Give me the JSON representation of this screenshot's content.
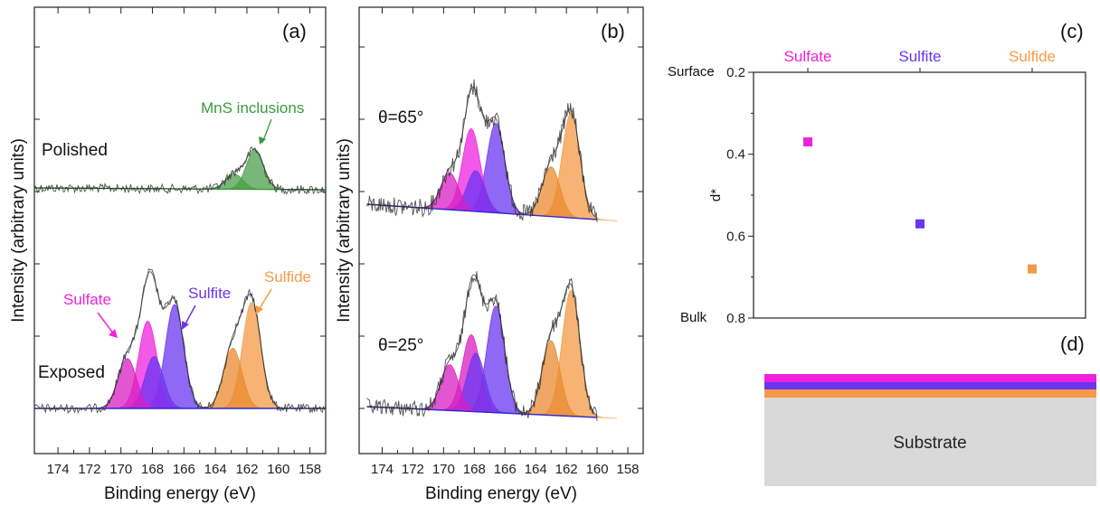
{
  "panels": {
    "a": {
      "letter": "(a)"
    },
    "b": {
      "letter": "(b)"
    },
    "c": {
      "letter": "(c)"
    },
    "d": {
      "letter": "(d)"
    }
  },
  "axes": {
    "xlabel": "Binding energy (eV)",
    "ylabel": "Intensity (arbitrary units)",
    "xticks": [
      "174",
      "172",
      "170",
      "168",
      "166",
      "164",
      "162",
      "160",
      "158"
    ]
  },
  "labels": {
    "polished": "Polished",
    "exposed": "Exposed",
    "mns": "MnS inclusions",
    "sulfate": "Sulfate",
    "sulfite": "Sulfite",
    "sulfide": "Sulfide",
    "theta65": "θ=65°",
    "theta25": "θ=25°"
  },
  "colors": {
    "sulfate": "#ee22dd",
    "sulfate_dark": "#d81fc2",
    "sulfite": "#6a36f0",
    "sulfide": "#f49a46",
    "sulfide_dark": "#e98a2f",
    "mns": "#4a9f4a",
    "baseline_blue": "#2d2bd0",
    "baseline_green": "#3a9a3a",
    "substrate": "#d9d9d9"
  },
  "chart_data": [
    {
      "type": "line",
      "title": "(a)",
      "xlabel": "Binding energy (eV)",
      "ylabel": "Intensity (arbitrary units)",
      "xlim": [
        175.5,
        157
      ],
      "x_reversed": true,
      "series": [
        {
          "name": "Polished",
          "components": [
            {
              "label": "MnS inclusions",
              "center_eV": 161.5,
              "relative_height": 0.9
            },
            {
              "label": "MnS inclusions",
              "center_eV": 162.8,
              "relative_height": 0.35
            }
          ]
        },
        {
          "name": "Exposed",
          "components": [
            {
              "label": "Sulfate",
              "center_eV": 169.6,
              "relative_height": 0.48
            },
            {
              "label": "Sulfate",
              "center_eV": 168.3,
              "relative_height": 0.84
            },
            {
              "label": "Sulfite",
              "center_eV": 167.9,
              "relative_height": 0.5
            },
            {
              "label": "Sulfite",
              "center_eV": 166.6,
              "relative_height": 1.0
            },
            {
              "label": "Sulfide",
              "center_eV": 162.9,
              "relative_height": 0.58
            },
            {
              "label": "Sulfide",
              "center_eV": 161.7,
              "relative_height": 1.02
            }
          ]
        }
      ]
    },
    {
      "type": "line",
      "title": "(b)",
      "xlabel": "Binding energy (eV)",
      "ylabel": "Intensity (arbitrary units)",
      "xlim": [
        175.5,
        157
      ],
      "x_reversed": true,
      "series": [
        {
          "name": "θ=65°",
          "components": [
            {
              "label": "Sulfate",
              "center_eV": 169.6,
              "relative_height": 0.37
            },
            {
              "label": "Sulfate",
              "center_eV": 168.2,
              "relative_height": 0.83
            },
            {
              "label": "Sulfite",
              "center_eV": 167.9,
              "relative_height": 0.41
            },
            {
              "label": "Sulfite",
              "center_eV": 166.6,
              "relative_height": 0.9
            },
            {
              "label": "Sulfide",
              "center_eV": 163.0,
              "relative_height": 0.5
            },
            {
              "label": "Sulfide",
              "center_eV": 161.7,
              "relative_height": 1.05
            }
          ]
        },
        {
          "name": "θ=25°",
          "components": [
            {
              "label": "Sulfate",
              "center_eV": 169.6,
              "relative_height": 0.43
            },
            {
              "label": "Sulfate",
              "center_eV": 168.2,
              "relative_height": 0.72
            },
            {
              "label": "Sulfite",
              "center_eV": 167.9,
              "relative_height": 0.55
            },
            {
              "label": "Sulfite",
              "center_eV": 166.6,
              "relative_height": 1.0
            },
            {
              "label": "Sulfide",
              "center_eV": 163.0,
              "relative_height": 0.7
            },
            {
              "label": "Sulfide",
              "center_eV": 161.7,
              "relative_height": 1.18
            }
          ]
        }
      ]
    },
    {
      "type": "scatter",
      "title": "(c)",
      "ylabel": "d*",
      "ylim": [
        0.2,
        0.8
      ],
      "y_reversed": true,
      "yticks": [
        "0.2",
        "0.4",
        "0.6",
        "0.8"
      ],
      "ytick_side_labels": {
        "top": "Surface",
        "bottom": "Bulk"
      },
      "categories": [
        "Sulfate",
        "Sulfite",
        "Sulfide"
      ],
      "values": [
        0.37,
        0.57,
        0.68
      ]
    },
    {
      "type": "diagram",
      "title": "(d)",
      "layers_top_to_bottom": [
        "Sulfate",
        "Sulfite",
        "Sulfide",
        "Substrate"
      ],
      "substrate_label": "Substrate"
    }
  ]
}
